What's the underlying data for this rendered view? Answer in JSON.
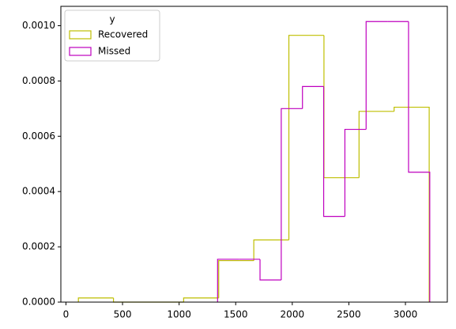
{
  "chart_data": {
    "type": "histogram",
    "series": [
      {
        "name": "Recovered",
        "color": "#bfbf00",
        "bins": [
          110,
          420,
          730,
          1040,
          1350,
          1660,
          1970,
          2280,
          2590,
          2900,
          3210
        ],
        "values": [
          1.5e-05,
          0,
          0,
          1.5e-05,
          0.00015,
          0.000225,
          0.000965,
          0.00045,
          0.00069,
          0.000705
        ]
      },
      {
        "name": "Missed",
        "color": "#bf00bf",
        "bins": [
          1340,
          1527.5,
          1715,
          1902.5,
          2090,
          2277.5,
          2465,
          2652.5,
          2840,
          3027.5,
          3215
        ],
        "values": [
          0.000155,
          0.000155,
          8e-05,
          0.0007,
          0.00078,
          0.00031,
          0.000625,
          0.001015,
          0.001015,
          0.00047
        ]
      }
    ],
    "xlim": [
      -45,
      3370
    ],
    "xticks": [
      0,
      500,
      1000,
      1500,
      2000,
      2500,
      3000
    ],
    "ylim": [
      0,
      0.00107
    ],
    "yticks": [
      {
        "value": 0,
        "label": "0.0000"
      },
      {
        "value": 0.0002,
        "label": "0.0002"
      },
      {
        "value": 0.0004,
        "label": "0.0004"
      },
      {
        "value": 0.0006,
        "label": "0.0006"
      },
      {
        "value": 0.0008,
        "label": "0.0008"
      },
      {
        "value": 0.001,
        "label": "0.0010"
      }
    ],
    "legend": "upper left",
    "legend_title": "y"
  }
}
